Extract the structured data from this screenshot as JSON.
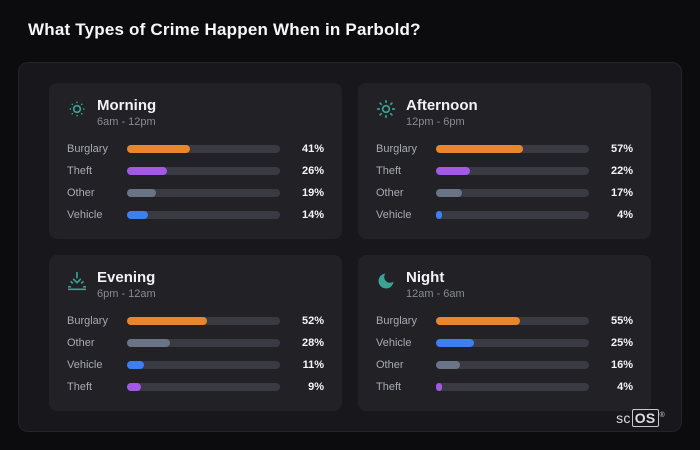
{
  "page": {
    "title": "What Types of Crime Happen When in Parbold?"
  },
  "brand": {
    "prefix": "sc",
    "suffix": "OS",
    "registered": "®"
  },
  "colors": {
    "background": "#0c0c0e",
    "panel": "#18181c",
    "card": "#212126",
    "track": "#3a3a42",
    "accent_teal": "#3aa394",
    "burglary": "#e8862d",
    "theft": "#a259e6",
    "other": "#697586",
    "vehicle": "#3d7ef0"
  },
  "chart_data": [
    {
      "type": "bar",
      "orientation": "horizontal",
      "title": "Morning",
      "subtitle": "6am - 12pm",
      "icon": "sun-dim-icon",
      "xlim": [
        0,
        100
      ],
      "unit": "%",
      "categories": [
        "Burglary",
        "Theft",
        "Other",
        "Vehicle"
      ],
      "values": [
        41,
        26,
        19,
        14
      ],
      "rows": [
        {
          "label": "Burglary",
          "value": 41,
          "display": "41%",
          "color": "#e8862d"
        },
        {
          "label": "Theft",
          "value": 26,
          "display": "26%",
          "color": "#a259e6"
        },
        {
          "label": "Other",
          "value": 19,
          "display": "19%",
          "color": "#697586"
        },
        {
          "label": "Vehicle",
          "value": 14,
          "display": "14%",
          "color": "#3d7ef0"
        }
      ]
    },
    {
      "type": "bar",
      "orientation": "horizontal",
      "title": "Afternoon",
      "subtitle": "12pm - 6pm",
      "icon": "sun-icon",
      "xlim": [
        0,
        100
      ],
      "unit": "%",
      "categories": [
        "Burglary",
        "Theft",
        "Other",
        "Vehicle"
      ],
      "values": [
        57,
        22,
        17,
        4
      ],
      "rows": [
        {
          "label": "Burglary",
          "value": 57,
          "display": "57%",
          "color": "#e8862d"
        },
        {
          "label": "Theft",
          "value": 22,
          "display": "22%",
          "color": "#a259e6"
        },
        {
          "label": "Other",
          "value": 17,
          "display": "17%",
          "color": "#697586"
        },
        {
          "label": "Vehicle",
          "value": 4,
          "display": "4%",
          "color": "#3d7ef0"
        }
      ]
    },
    {
      "type": "bar",
      "orientation": "horizontal",
      "title": "Evening",
      "subtitle": "6pm - 12am",
      "icon": "sunset-icon",
      "xlim": [
        0,
        100
      ],
      "unit": "%",
      "categories": [
        "Burglary",
        "Other",
        "Vehicle",
        "Theft"
      ],
      "values": [
        52,
        28,
        11,
        9
      ],
      "rows": [
        {
          "label": "Burglary",
          "value": 52,
          "display": "52%",
          "color": "#e8862d"
        },
        {
          "label": "Other",
          "value": 28,
          "display": "28%",
          "color": "#697586"
        },
        {
          "label": "Vehicle",
          "value": 11,
          "display": "11%",
          "color": "#3d7ef0"
        },
        {
          "label": "Theft",
          "value": 9,
          "display": "9%",
          "color": "#a259e6"
        }
      ]
    },
    {
      "type": "bar",
      "orientation": "horizontal",
      "title": "Night",
      "subtitle": "12am - 6am",
      "icon": "moon-icon",
      "xlim": [
        0,
        100
      ],
      "unit": "%",
      "categories": [
        "Burglary",
        "Vehicle",
        "Other",
        "Theft"
      ],
      "values": [
        55,
        25,
        16,
        4
      ],
      "rows": [
        {
          "label": "Burglary",
          "value": 55,
          "display": "55%",
          "color": "#e8862d"
        },
        {
          "label": "Vehicle",
          "value": 25,
          "display": "25%",
          "color": "#3d7ef0"
        },
        {
          "label": "Other",
          "value": 16,
          "display": "16%",
          "color": "#697586"
        },
        {
          "label": "Theft",
          "value": 4,
          "display": "4%",
          "color": "#a259e6"
        }
      ]
    }
  ]
}
